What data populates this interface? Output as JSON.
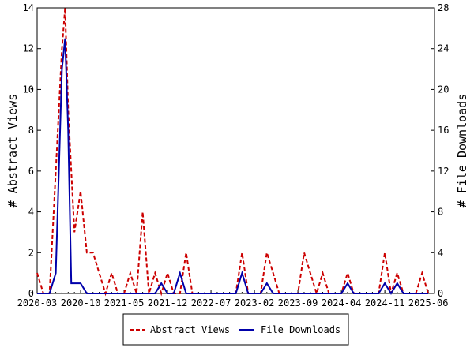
{
  "chart_data": {
    "type": "line",
    "title": "",
    "x_tick_labels": [
      "2020-03",
      "2020-10",
      "2021-05",
      "2021-12",
      "2022-07",
      "2023-02",
      "2023-09",
      "2024-04",
      "2024-11",
      "2025-06"
    ],
    "x_tick_months": [
      0,
      7,
      14,
      21,
      28,
      35,
      42,
      49,
      56,
      63
    ],
    "xlim_months": [
      0,
      64
    ],
    "y_left": {
      "label": "# Abstract Views",
      "ylim": [
        0,
        14
      ],
      "ticks": [
        0,
        2,
        4,
        6,
        8,
        10,
        12,
        14
      ]
    },
    "y_right": {
      "label": "# File Downloads",
      "ylim": [
        0,
        28
      ],
      "ticks": [
        0,
        4,
        8,
        12,
        16,
        20,
        24,
        28
      ]
    },
    "grid": false,
    "legend_position": "bottom",
    "series": [
      {
        "name": "Abstract Views",
        "axis": "left",
        "color": "#cc0000",
        "dash": "dashed",
        "points": [
          [
            0,
            1
          ],
          [
            1,
            0
          ],
          [
            2,
            0
          ],
          [
            3,
            6
          ],
          [
            4,
            12
          ],
          [
            4.5,
            14
          ],
          [
            5,
            9
          ],
          [
            5.5,
            6
          ],
          [
            6,
            3
          ],
          [
            7,
            5
          ],
          [
            8,
            2
          ],
          [
            9,
            2
          ],
          [
            10,
            1
          ],
          [
            11,
            0
          ],
          [
            12,
            1
          ],
          [
            13,
            0
          ],
          [
            14,
            0
          ],
          [
            15,
            1
          ],
          [
            16,
            0
          ],
          [
            17,
            4
          ],
          [
            18,
            0
          ],
          [
            19,
            1
          ],
          [
            20,
            0
          ],
          [
            21,
            1
          ],
          [
            22,
            0
          ],
          [
            23,
            0
          ],
          [
            24,
            2
          ],
          [
            25,
            0
          ],
          [
            26,
            0
          ],
          [
            27,
            0
          ],
          [
            28,
            0
          ],
          [
            29,
            0
          ],
          [
            30,
            0
          ],
          [
            31,
            0
          ],
          [
            32,
            0
          ],
          [
            33,
            2
          ],
          [
            34,
            0
          ],
          [
            35,
            0
          ],
          [
            36,
            0
          ],
          [
            37,
            2
          ],
          [
            38,
            1
          ],
          [
            39,
            0
          ],
          [
            40,
            0
          ],
          [
            41,
            0
          ],
          [
            42,
            0
          ],
          [
            43,
            2
          ],
          [
            44,
            1
          ],
          [
            45,
            0
          ],
          [
            46,
            1
          ],
          [
            47,
            0
          ],
          [
            48,
            0
          ],
          [
            49,
            0
          ],
          [
            50,
            1
          ],
          [
            51,
            0
          ],
          [
            52,
            0
          ],
          [
            53,
            0
          ],
          [
            54,
            0
          ],
          [
            55,
            0
          ],
          [
            56,
            2
          ],
          [
            57,
            0
          ],
          [
            58,
            1
          ],
          [
            59,
            0
          ],
          [
            60,
            0
          ],
          [
            61,
            0
          ],
          [
            62,
            1
          ],
          [
            63,
            0
          ]
        ]
      },
      {
        "name": "File Downloads",
        "axis": "right",
        "color": "#0000aa",
        "dash": "solid",
        "points": [
          [
            0,
            0
          ],
          [
            1,
            0
          ],
          [
            2,
            0
          ],
          [
            3,
            2
          ],
          [
            4,
            22
          ],
          [
            4.5,
            25
          ],
          [
            5,
            16
          ],
          [
            5.5,
            1
          ],
          [
            6,
            1
          ],
          [
            7,
            1
          ],
          [
            8,
            0
          ],
          [
            9,
            0
          ],
          [
            10,
            0
          ],
          [
            11,
            0
          ],
          [
            12,
            0
          ],
          [
            13,
            0
          ],
          [
            14,
            0
          ],
          [
            15,
            0
          ],
          [
            16,
            0
          ],
          [
            17,
            0
          ],
          [
            18,
            0
          ],
          [
            19,
            0
          ],
          [
            20,
            1
          ],
          [
            21,
            0
          ],
          [
            22,
            0
          ],
          [
            23,
            2
          ],
          [
            24,
            0
          ],
          [
            25,
            0
          ],
          [
            26,
            0
          ],
          [
            27,
            0
          ],
          [
            28,
            0
          ],
          [
            29,
            0
          ],
          [
            30,
            0
          ],
          [
            31,
            0
          ],
          [
            32,
            0
          ],
          [
            33,
            2
          ],
          [
            34,
            0
          ],
          [
            35,
            0
          ],
          [
            36,
            0
          ],
          [
            37,
            1
          ],
          [
            38,
            0
          ],
          [
            39,
            0
          ],
          [
            40,
            0
          ],
          [
            41,
            0
          ],
          [
            42,
            0
          ],
          [
            43,
            0
          ],
          [
            44,
            0
          ],
          [
            45,
            0
          ],
          [
            46,
            0
          ],
          [
            47,
            0
          ],
          [
            48,
            0
          ],
          [
            49,
            0
          ],
          [
            50,
            1
          ],
          [
            51,
            0
          ],
          [
            52,
            0
          ],
          [
            53,
            0
          ],
          [
            54,
            0
          ],
          [
            55,
            0
          ],
          [
            56,
            1
          ],
          [
            57,
            0
          ],
          [
            58,
            1
          ],
          [
            59,
            0
          ],
          [
            60,
            0
          ],
          [
            61,
            0
          ],
          [
            62,
            0
          ],
          [
            63,
            0
          ]
        ]
      }
    ]
  }
}
